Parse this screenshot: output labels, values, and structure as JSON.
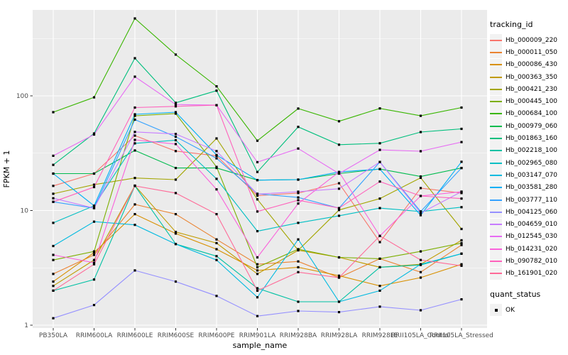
{
  "chart_data": {
    "type": "line",
    "title": "",
    "xlabel": "sample_name",
    "ylabel": "FPKM + 1",
    "y_scale": "log10",
    "y_tick_values": [
      1,
      10,
      100
    ],
    "y_tick_labels": [
      "1",
      "10",
      "100"
    ],
    "y_minor_values": [
      3.1623,
      31.623,
      316.23
    ],
    "ylim": [
      1,
      550
    ],
    "grid": "white major/minor gridlines on grey panel",
    "legend_position": "right",
    "categories": [
      "PB350LA",
      "RRIM600LA",
      "RRIM600LE",
      "RRIM600SE",
      "RRIM600PE",
      "RRIM901LA",
      "RRIM928BA",
      "RRIM928LA",
      "RRIM928LE",
      "RRII105LA_Control",
      "RRII105LA_Stressed"
    ],
    "series": [
      {
        "name": "Hb_000009_220",
        "color": "#F8766D",
        "values": [
          16.4,
          21,
          45,
          33,
          30,
          13.5,
          14.2,
          17.3,
          5.3,
          15.7,
          14.2
        ]
      },
      {
        "name": "Hb_000011_050",
        "color": "#EA8331",
        "values": [
          2.8,
          4.1,
          11.3,
          9.3,
          5.6,
          3.4,
          3.6,
          2.6,
          3.8,
          2.9,
          5.0
        ]
      },
      {
        "name": "Hb_000086_430",
        "color": "#D89000",
        "values": [
          2.4,
          4.3,
          9.3,
          6.3,
          4.6,
          3.0,
          3.2,
          2.7,
          2.2,
          2.6,
          3.4
        ]
      },
      {
        "name": "Hb_000363_350",
        "color": "#C09B00",
        "values": [
          2.2,
          3.7,
          16.5,
          6.5,
          5.2,
          2.8,
          4.5,
          3.9,
          3.2,
          3.4,
          5.5
        ]
      },
      {
        "name": "Hb_000421_230",
        "color": "#A3A500",
        "values": [
          14,
          16.8,
          19.2,
          18.6,
          42.5,
          12.5,
          4.5,
          10.1,
          12.7,
          19.3,
          6.9
        ]
      },
      {
        "name": "Hb_000445_100",
        "color": "#7CAE00",
        "values": [
          3.7,
          4.4,
          67,
          70,
          24,
          3.2,
          4.6,
          3.9,
          3.8,
          4.4,
          5.2
        ]
      },
      {
        "name": "Hb_000684_100",
        "color": "#39B600",
        "values": [
          72,
          97,
          473,
          229,
          121,
          40.6,
          77.5,
          60,
          77.7,
          67,
          79
        ]
      },
      {
        "name": "Hb_000979_060",
        "color": "#00BB4E",
        "values": [
          21,
          21,
          33.4,
          23.5,
          23.5,
          18.4,
          18.6,
          21,
          23,
          19.8,
          23.5
        ]
      },
      {
        "name": "Hb_001863_160",
        "color": "#00BF7D",
        "values": [
          25,
          47,
          213,
          87,
          111,
          21.7,
          53.6,
          37.5,
          38.6,
          48.3,
          51.5
        ]
      },
      {
        "name": "Hb_002218_100",
        "color": "#00C1A3",
        "values": [
          2.0,
          2.5,
          16.4,
          5.1,
          4.0,
          2.1,
          1.6,
          1.6,
          3.2,
          3.35,
          4.2
        ]
      },
      {
        "name": "Hb_002965_080",
        "color": "#00BFC4",
        "values": [
          7.8,
          11,
          38.5,
          41,
          18.9,
          6.6,
          7.8,
          9.0,
          10.5,
          9.8,
          10.7
        ]
      },
      {
        "name": "Hb_003147_070",
        "color": "#00BAE0",
        "values": [
          4.9,
          8.0,
          7.5,
          5.1,
          3.7,
          1.75,
          5.6,
          1.6,
          2.0,
          3.4,
          4.2
        ]
      },
      {
        "name": "Hb_003581_280",
        "color": "#00B0F6",
        "values": [
          21,
          11,
          69,
          72,
          30.5,
          18.4,
          18.6,
          21.7,
          23,
          9.1,
          26.6
        ]
      },
      {
        "name": "Hb_003777_110",
        "color": "#35A2FF",
        "values": [
          11.9,
          10.5,
          62,
          44,
          28.5,
          14,
          13,
          10.5,
          26.5,
          9.8,
          23.5
        ]
      },
      {
        "name": "Hb_004125_060",
        "color": "#9590FF",
        "values": [
          1.15,
          1.5,
          3.0,
          2.4,
          1.8,
          1.2,
          1.33,
          1.3,
          1.45,
          1.35,
          1.68
        ]
      },
      {
        "name": "Hb_004659_010",
        "color": "#C77CFF",
        "values": [
          12.8,
          10.5,
          48.5,
          46.5,
          33,
          13.9,
          14.6,
          15.5,
          26.5,
          9.5,
          14.6
        ]
      },
      {
        "name": "Hb_012545_030",
        "color": "#E76BF3",
        "values": [
          30,
          46,
          147,
          84,
          83,
          26.4,
          34.7,
          21,
          33.8,
          32.9,
          39.5
        ]
      },
      {
        "name": "Hb_014231_020",
        "color": "#FA62DB",
        "values": [
          4.1,
          3.5,
          41.3,
          38,
          15.3,
          3.9,
          11.5,
          21.7,
          6.0,
          13.4,
          14.6
        ]
      },
      {
        "name": "Hb_090782_010",
        "color": "#FF62BC",
        "values": [
          11.9,
          16,
          79,
          81,
          83,
          9.8,
          12.3,
          10.5,
          17.9,
          13.4,
          12.7
        ]
      },
      {
        "name": "Hb_161901_020",
        "color": "#FF6A98",
        "values": [
          2.0,
          3.4,
          16.4,
          14.2,
          9.3,
          2.0,
          2.9,
          2.6,
          6.0,
          3.7,
          3.3
        ]
      }
    ],
    "point_marker": {
      "shape": "filled-square",
      "color": "#000000"
    },
    "legend": {
      "title": "tracking_id",
      "quant_title": "quant_status",
      "quant_items": [
        {
          "label": "OK",
          "marker": "black-square"
        }
      ]
    }
  },
  "colors": {
    "page_bg": "#FFFFFF",
    "panel_bg": "#EBEBEB",
    "grid": "#FFFFFF",
    "tick": "#333333",
    "tick_label": "#4D4D4D",
    "axis_title": "#000000",
    "legend_key_bg": "#F2F2F2"
  }
}
